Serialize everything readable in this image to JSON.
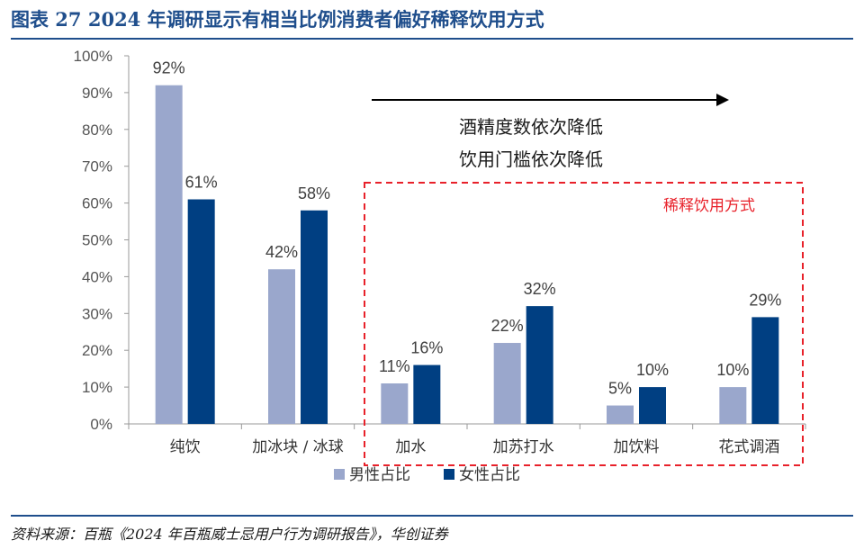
{
  "figure": {
    "title": "图表 27    2024 年调研显示有相当比例消费者偏好稀释饮用方式",
    "source": "资料来源：百瓶《2024 年百瓶威士忌用户行为调研报告》，华创证券"
  },
  "chart_data": {
    "type": "bar",
    "categories": [
      "纯饮",
      "加冰块 / 冰球",
      "加水",
      "加苏打水",
      "加饮料",
      "花式调酒"
    ],
    "series": [
      {
        "name": "男性占比",
        "values": [
          92,
          42,
          11,
          22,
          5,
          10
        ],
        "labels": [
          "92%",
          "42%",
          "11%",
          "22%",
          "5%",
          "10%"
        ],
        "color": "#9aa7cc"
      },
      {
        "name": "女性占比",
        "values": [
          61,
          58,
          16,
          32,
          10,
          29
        ],
        "labels": [
          "61%",
          "58%",
          "16%",
          "32%",
          "10%",
          "29%"
        ],
        "color": "#003f82"
      }
    ],
    "yticks": [
      "0%",
      "10%",
      "20%",
      "30%",
      "40%",
      "50%",
      "60%",
      "70%",
      "80%",
      "90%",
      "100%"
    ],
    "ylim": [
      0,
      100
    ],
    "grid": false,
    "legend": "bottom-center",
    "annotations": {
      "line1": "酒精度数依次降低",
      "line2": "饮用门槛依次降低",
      "box_label": "稀释饮用方式",
      "box_color": "#e8212a"
    }
  }
}
